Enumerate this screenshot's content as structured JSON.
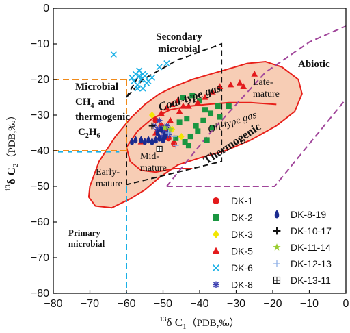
{
  "chart_data": {
    "type": "scatter",
    "x_axis": {
      "label_prefix": "13",
      "label_main": "δ C",
      "label_sub": "1",
      "label_suffix": "（PDB,‰）",
      "range": [
        -80,
        0
      ],
      "ticks": [
        -80,
        -70,
        -60,
        -50,
        -40,
        -30,
        -20,
        -10,
        0
      ]
    },
    "y_axis": {
      "label_prefix": "13",
      "label_main": "δ C",
      "label_sub": "2",
      "label_suffix": "（PDB,‰）",
      "range": [
        -80,
        0
      ],
      "ticks": [
        0,
        -10,
        -20,
        -30,
        -40,
        -50,
        -60,
        -70,
        -80
      ]
    },
    "regions": [
      {
        "name": "secondary",
        "text": [
          "Secondary",
          "microbial"
        ]
      },
      {
        "name": "abiotic",
        "text": [
          "Abiotic"
        ]
      },
      {
        "name": "mixed",
        "text": [
          "Microbial",
          "CH",
          "4",
          "and",
          "thermogenic",
          "C",
          "2",
          "H",
          "6"
        ]
      },
      {
        "name": "primary",
        "text": [
          "Primary",
          "microbial"
        ]
      },
      {
        "name": "coal",
        "text": [
          "Coal-type gas"
        ]
      },
      {
        "name": "oil",
        "text": [
          "Oil-type gas"
        ]
      },
      {
        "name": "thermogenic",
        "text": [
          "Thermogenic"
        ]
      },
      {
        "name": "late",
        "text": [
          "Late-",
          "mature"
        ]
      },
      {
        "name": "mid",
        "text": [
          "Mid-",
          "mature"
        ]
      },
      {
        "name": "early",
        "text": [
          "Early-",
          "mature"
        ]
      }
    ],
    "legend_placement": "bottom-right",
    "series": [
      {
        "name": "DK-1",
        "marker": "circle",
        "color": "#e31a1c",
        "x": [
          -50.5,
          -49.5,
          -48.5,
          -52.0,
          -47.0
        ],
        "y": [
          -33.0,
          -34.5,
          -36.5,
          -31.5,
          -38.0
        ]
      },
      {
        "name": "DK-2",
        "marker": "square",
        "color": "#1a9641",
        "x": [
          -44.5,
          -42.0,
          -40.0,
          -38.5,
          -37.0,
          -35.0,
          -32.0,
          -45.5,
          -43.5,
          -41.0,
          -39.0,
          -36.5,
          -34.5,
          -46.5,
          -44.0,
          -42.5,
          -40.5,
          -38.0,
          -43.0
        ],
        "y": [
          -25.0,
          -24.5,
          -26.0,
          -28.5,
          -29.5,
          -27.5,
          -27.5,
          -32.0,
          -31.0,
          -33.0,
          -31.5,
          -33.5,
          -30.5,
          -36.5,
          -37.5,
          -36.0,
          -34.5,
          -37.0,
          -38.5
        ]
      },
      {
        "name": "DK-3",
        "marker": "diamond",
        "color": "#f2e600",
        "x": [
          -53.0,
          -47.5,
          -45.0
        ],
        "y": [
          -30.0,
          -34.0,
          -36.0
        ]
      },
      {
        "name": "DK-5",
        "marker": "triangle",
        "color": "#e31a1c",
        "x": [
          -56.0,
          -52.0,
          -50.5,
          -49.0,
          -47.5,
          -46.0,
          -44.5,
          -48.0,
          -45.5,
          -43.0,
          -40.5,
          -38.5,
          -36.5,
          -34.5,
          -31.5,
          -29.0,
          -28.0,
          -25.0
        ],
        "y": [
          -37.5,
          -35.0,
          -29.5,
          -28.0,
          -27.0,
          -26.0,
          -27.5,
          -31.5,
          -29.0,
          -27.5,
          -26.5,
          -25.0,
          -23.5,
          -22.0,
          -21.5,
          -21.0,
          -22.0,
          -18.5
        ]
      },
      {
        "name": "DK-6",
        "marker": "x",
        "color": "#1ab0e6",
        "x": [
          -63.5,
          -58.5,
          -58.0,
          -57.5,
          -57.0,
          -56.5,
          -56.0,
          -55.5,
          -55.0,
          -54.5,
          -57.0,
          -55.5,
          -54.0,
          -56.5,
          -53.0,
          -51.0,
          -49.0
        ],
        "y": [
          -13.0,
          -19.5,
          -20.5,
          -18.5,
          -21.5,
          -19.0,
          -20.0,
          -22.5,
          -19.0,
          -21.0,
          -22.5,
          -18.5,
          -20.5,
          -17.5,
          -19.5,
          -16.5,
          -15.5
        ]
      },
      {
        "name": "DK-8",
        "marker": "asterisk",
        "color": "#3b3fb0",
        "x": [
          -52.5,
          -51.5,
          -50.5,
          -49.5,
          -50.5,
          -51.0,
          -49.0,
          -52.0,
          -48.5,
          -50.0
        ],
        "y": [
          -33.0,
          -34.0,
          -33.5,
          -35.0,
          -36.0,
          -31.5,
          -33.0,
          -37.0,
          -35.5,
          -34.5
        ]
      },
      {
        "name": "DK-8-19",
        "marker": "drop",
        "color": "#1a2b8f",
        "x": [
          -58.5,
          -57.5,
          -56.0,
          -55.0,
          -54.0,
          -53.0,
          -52.0,
          -51.0,
          -50.0,
          -49.5,
          -48.5,
          -51.5,
          -50.5,
          -49.5
        ],
        "y": [
          -37.5,
          -37.0,
          -37.0,
          -37.5,
          -37.0,
          -37.5,
          -37.0,
          -36.5,
          -37.0,
          -36.0,
          -34.5,
          -35.0,
          -34.0,
          -35.5
        ]
      },
      {
        "name": "DK-10-17",
        "marker": "plus",
        "color": "#111111",
        "x": [
          -53.0
        ],
        "y": [
          -33.0
        ]
      },
      {
        "name": "DK-11-14",
        "marker": "star",
        "color": "#9acd32",
        "x": [
          -49.5,
          -48.0
        ],
        "y": [
          -33.5,
          -34.0
        ]
      },
      {
        "name": "DK-12-13",
        "marker": "thinplus",
        "color": "#8fb0e6",
        "x": [
          -48.5,
          -47.0,
          -46.5
        ],
        "y": [
          -35.0,
          -36.0,
          -38.5
        ]
      },
      {
        "name": "DK-13-11",
        "marker": "boxplus",
        "color": "#111111",
        "x": [
          -51.0
        ],
        "y": [
          -39.5
        ]
      }
    ]
  }
}
